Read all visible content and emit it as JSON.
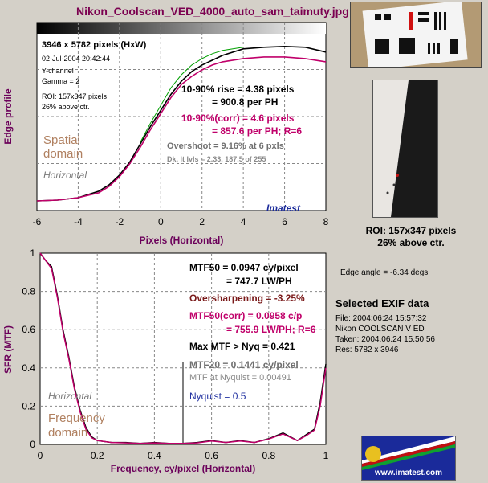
{
  "title": "Nikon_Coolscan_VED_4000_auto_sam_taimuty.jpg",
  "top_chart": {
    "info": [
      "3946 x 5782 pixels (HxW)",
      "02-Jul-2004 20:42:44",
      "Y-channel",
      "Gamma = 2",
      "ROI: 157x347 pixels",
      "26% above ctr."
    ],
    "rise": [
      "10-90% rise = 4.38 pixels",
      "= 900.8 per PH"
    ],
    "rise_corr": [
      "10-90%(corr) = 4.6 pixels",
      "= 857.6 per PH;  R=6"
    ],
    "overshoot": "Overshoot = 9.16% at 6 pxls",
    "dk_lt": "Dk, lt lvls = 2.33, 187.5 of 255",
    "domain_label": [
      "Spatial",
      "domain"
    ],
    "direction": "Horizontal",
    "brand": "Imatest",
    "ylabel": "Edge profile",
    "xlabel": "Pixels (Horizontal)",
    "xticks": [
      "-6",
      "-4",
      "-2",
      "0",
      "2",
      "4",
      "6",
      "8"
    ]
  },
  "bottom_chart": {
    "mtf50": [
      "MTF50 = 0.0947 cy/pixel",
      "= 747.7 LW/PH"
    ],
    "oversharpening": "Oversharpening = -3.25%",
    "mtf50_corr": [
      "MTF50(corr) = 0.0958 c/p",
      "= 755.9 LW/PH;  R=6"
    ],
    "max_mtf": "Max MTF > Nyq = 0.421",
    "mtf20": [
      "MTF20 = 0.1441 cy/pixel",
      "MTF at Nyquist = 0.00491"
    ],
    "nyquist": "Nyquist = 0.5",
    "direction": "Horizontal",
    "domain_label": [
      "Frequency",
      "domain"
    ],
    "ylabel": "SFR (MTF)",
    "xlabel": "Frequency,  cy/pixel (Horizontal)",
    "xticks": [
      "0",
      "0.2",
      "0.4",
      "0.6",
      "0.8",
      "1"
    ],
    "yticks": [
      "0",
      "0.2",
      "0.4",
      "0.6",
      "0.8",
      "1"
    ]
  },
  "roi_label": [
    "ROI: 157x347 pixels",
    "26% above ctr."
  ],
  "edge_angle": "Edge angle = -6.34 degs",
  "exif": {
    "title": "Selected EXIF data",
    "lines": [
      "File:  2004:06:24 15:57:32",
      "Nikon COOLSCAN V ED",
      "Taken:  2004.06.24 15.50.56",
      "Res:   5782 x 3946"
    ]
  },
  "logo_url": "www.imatest.com",
  "colors": {
    "title": "#7b0050",
    "black_curve": "#000000",
    "corr_curve": "#c0006a",
    "green_curve": "#00a000",
    "domain_text": "#b08060",
    "nyquist_text": "#2030a0"
  },
  "chart_data": [
    {
      "type": "line",
      "title": "",
      "xlabel": "Pixels (Horizontal)",
      "ylabel": "Edge profile",
      "xlim": [
        -6,
        8
      ],
      "grid": true,
      "series": [
        {
          "x": [
            -6,
            -5,
            -4,
            -3,
            -2.5,
            -2,
            -1.5,
            -1,
            -0.5,
            0,
            0.5,
            1,
            1.5,
            2,
            2.5,
            3,
            4,
            5,
            6,
            7,
            8
          ],
          "values": [
            0.02,
            0.025,
            0.04,
            0.08,
            0.12,
            0.18,
            0.26,
            0.37,
            0.48,
            0.58,
            0.68,
            0.76,
            0.82,
            0.86,
            0.89,
            0.92,
            0.96,
            0.97,
            0.975,
            0.97,
            0.94
          ]
        },
        {
          "x": [
            -6,
            -5,
            -4,
            -3,
            -2.5,
            -2,
            -1.5,
            -1,
            -0.5,
            0,
            0.5,
            1,
            1.5,
            2,
            2.5,
            3,
            4,
            5,
            6,
            7,
            8
          ],
          "values": [
            0.02,
            0.025,
            0.04,
            0.07,
            0.11,
            0.17,
            0.25,
            0.35,
            0.46,
            0.56,
            0.66,
            0.74,
            0.79,
            0.83,
            0.86,
            0.88,
            0.9,
            0.91,
            0.91,
            0.9,
            0.88
          ]
        },
        {
          "x": [
            -1,
            -0.5,
            0,
            0.5,
            1,
            1.5,
            2,
            2.5,
            3,
            4
          ],
          "values": [
            0.38,
            0.5,
            0.61,
            0.72,
            0.8,
            0.86,
            0.9,
            0.93,
            0.95,
            0.97
          ]
        }
      ]
    },
    {
      "type": "line",
      "title": "",
      "xlabel": "Frequency,  cy/pixel (Horizontal)",
      "ylabel": "SFR (MTF)",
      "xlim": [
        0,
        1
      ],
      "ylim": [
        0,
        1
      ],
      "grid": true,
      "series": [
        {
          "x": [
            0,
            0.02,
            0.04,
            0.06,
            0.08,
            0.1,
            0.12,
            0.14,
            0.16,
            0.18,
            0.2,
            0.25,
            0.3,
            0.35,
            0.4,
            0.45,
            0.5,
            0.55,
            0.6,
            0.65,
            0.7,
            0.75,
            0.8,
            0.85,
            0.9,
            0.93,
            0.96,
            0.98,
            1
          ],
          "values": [
            1,
            0.96,
            0.93,
            0.78,
            0.6,
            0.46,
            0.3,
            0.18,
            0.09,
            0.04,
            0.02,
            0.01,
            0.01,
            0.005,
            0.01,
            0.005,
            0.005,
            0.01,
            0.02,
            0.01,
            0.02,
            0.01,
            0.03,
            0.06,
            0.02,
            0.05,
            0.08,
            0.22,
            0.42
          ]
        },
        {
          "x": [
            0,
            0.02,
            0.04,
            0.06,
            0.08,
            0.1,
            0.12,
            0.14,
            0.16,
            0.18,
            0.2,
            0.25,
            0.3,
            0.35,
            0.4,
            0.45,
            0.5,
            0.55,
            0.6,
            0.65,
            0.7,
            0.75,
            0.8,
            0.85,
            0.9,
            0.93,
            0.96,
            0.98,
            1
          ],
          "values": [
            1,
            0.96,
            0.92,
            0.77,
            0.59,
            0.45,
            0.29,
            0.17,
            0.08,
            0.035,
            0.02,
            0.01,
            0.008,
            0.005,
            0.008,
            0.005,
            0.005,
            0.008,
            0.018,
            0.01,
            0.018,
            0.01,
            0.028,
            0.055,
            0.02,
            0.045,
            0.075,
            0.2,
            0.4
          ]
        }
      ]
    }
  ]
}
